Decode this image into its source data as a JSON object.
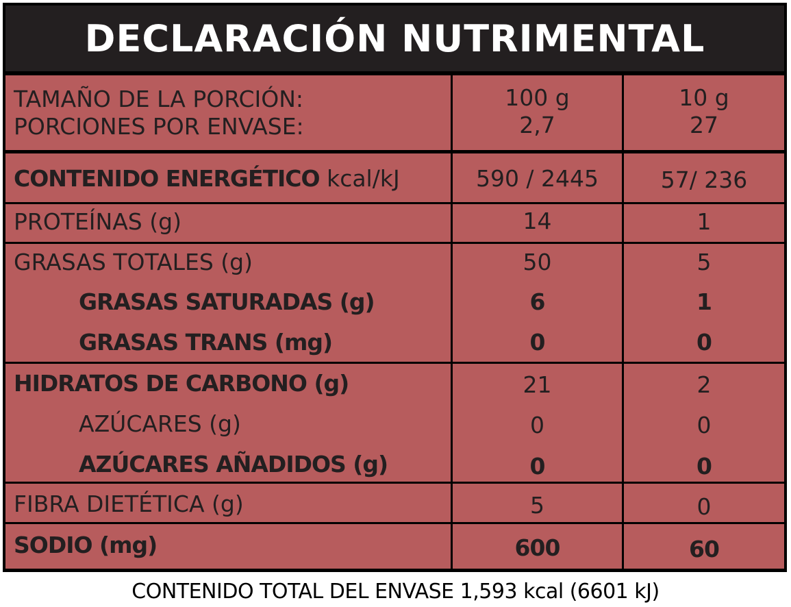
{
  "title": "DECLARACIÓN NUTRIMENTAL",
  "serving": {
    "label_size": "TAMAÑO DE LA PORCIÓN:",
    "label_portions": "PORCIONES POR ENVASE:",
    "col1_size": "100 g",
    "col1_portions": "2,7",
    "col2_size": "10 g",
    "col2_portions": "27"
  },
  "energy": {
    "label": "CONTENIDO ENERGÉTICO",
    "unit": "kcal/kJ",
    "col1": "590 / 2445",
    "col2": "57/ 236"
  },
  "protein": {
    "label": "PROTEÍNAS (g)",
    "col1": "14",
    "col2": "1"
  },
  "fats": {
    "total_label": "GRASAS TOTALES (g)",
    "total_col1": "50",
    "total_col2": "5",
    "sat_label": "GRASAS SATURADAS (g)",
    "sat_col1": "6",
    "sat_col2": "1",
    "trans_label": "GRASAS TRANS (mg)",
    "trans_col1": "0",
    "trans_col2": "0"
  },
  "carbs": {
    "total_label": "HIDRATOS DE CARBONO (g)",
    "total_col1": "21",
    "total_col2": "2",
    "sugars_label": "AZÚCARES (g)",
    "sugars_col1": "0",
    "sugars_col2": "0",
    "added_label": "AZÚCARES AÑADIDOS (g)",
    "added_col1": "0",
    "added_col2": "0"
  },
  "fiber": {
    "label": "FIBRA DIETÉTICA (g)",
    "col1": "5",
    "col2": "0"
  },
  "sodium": {
    "label": "SODIO (mg)",
    "col1": "600",
    "col2": "60"
  },
  "footer": "CONTENIDO TOTAL DEL ENVASE 1,593 kcal (6601 kJ)",
  "colors": {
    "cell_bg": "#b75c5d",
    "header_bg": "#231f20",
    "grid": "#000000",
    "text": "#231f20"
  }
}
